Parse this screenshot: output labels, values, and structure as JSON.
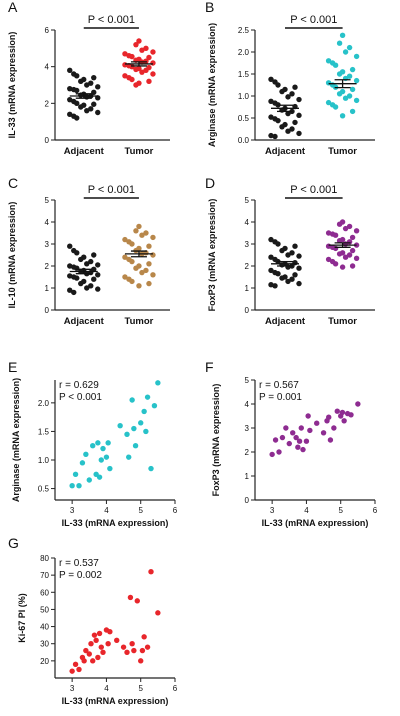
{
  "colors": {
    "black": "#1a1a1a",
    "red": "#e8262b",
    "cyan": "#27c2c9",
    "gold": "#b8874a",
    "purple": "#8e2c91"
  },
  "chart_data": [
    {
      "panel": "A",
      "type": "scatter",
      "ylabel": "IL-33 (mRNA expression)",
      "ylim": [
        0,
        6
      ],
      "yticks": [
        "0",
        "2",
        "4",
        "6"
      ],
      "categories": [
        "Adjacent",
        "Tumor"
      ],
      "annotation": "P < 0.001",
      "series": [
        {
          "color": "black",
          "mean": 2.4,
          "sem": 0.12,
          "values": [
            3.8,
            3.6,
            3.5,
            3.4,
            3.3,
            3.2,
            3.1,
            3.0,
            2.9,
            2.8,
            2.75,
            2.7,
            2.6,
            2.5,
            2.45,
            2.4,
            2.35,
            2.3,
            2.2,
            2.1,
            2.0,
            1.95,
            1.9,
            1.8,
            1.7,
            1.6,
            1.5,
            1.4,
            1.3,
            1.2
          ]
        },
        {
          "color": "red",
          "mean": 4.15,
          "sem": 0.11,
          "values": [
            5.4,
            5.2,
            5.0,
            4.9,
            4.8,
            4.7,
            4.6,
            4.55,
            4.5,
            4.4,
            4.35,
            4.3,
            4.25,
            4.2,
            4.1,
            4.05,
            4.0,
            3.95,
            3.9,
            3.85,
            3.8,
            3.7,
            3.6,
            3.5,
            3.4,
            3.3,
            3.2,
            3.1,
            3.0
          ]
        }
      ]
    },
    {
      "panel": "B",
      "type": "scatter",
      "ylabel": "Arginase (mRNA expression)",
      "ylim": [
        0,
        2.5
      ],
      "yticks": [
        "0.0",
        "0.5",
        "1.0",
        "1.5",
        "2.0",
        "2.5"
      ],
      "categories": [
        "Adjacent",
        "Tumor"
      ],
      "annotation": "P < 0.001",
      "series": [
        {
          "color": "black",
          "mean": 0.72,
          "sem": 0.07,
          "values": [
            1.38,
            1.32,
            1.25,
            1.2,
            1.15,
            1.1,
            1.05,
            0.98,
            0.92,
            0.88,
            0.84,
            0.8,
            0.76,
            0.72,
            0.68,
            0.65,
            0.6,
            0.56,
            0.52,
            0.48,
            0.44,
            0.4,
            0.35,
            0.3,
            0.25,
            0.2,
            0.15,
            0.1,
            0.08
          ]
        },
        {
          "color": "cyan",
          "mean": 1.28,
          "sem": 0.09,
          "values": [
            2.38,
            2.2,
            2.1,
            2.0,
            1.9,
            1.8,
            1.75,
            1.7,
            1.6,
            1.55,
            1.5,
            1.45,
            1.4,
            1.35,
            1.3,
            1.25,
            1.2,
            1.15,
            1.1,
            1.05,
            1.0,
            0.95,
            0.9,
            0.85,
            0.8,
            0.75,
            0.65,
            0.55
          ]
        }
      ]
    },
    {
      "panel": "C",
      "type": "scatter",
      "ylabel": "IL-10 (mRNA expression)",
      "ylim": [
        0,
        5
      ],
      "yticks": [
        "0",
        "1",
        "2",
        "3",
        "4",
        "5"
      ],
      "categories": [
        "Adjacent",
        "Tumor"
      ],
      "annotation": "P < 0.001",
      "series": [
        {
          "color": "black",
          "mean": 1.75,
          "sem": 0.1,
          "values": [
            2.9,
            2.7,
            2.6,
            2.5,
            2.4,
            2.3,
            2.2,
            2.1,
            2.05,
            2.0,
            1.95,
            1.9,
            1.85,
            1.8,
            1.75,
            1.7,
            1.65,
            1.6,
            1.55,
            1.5,
            1.45,
            1.4,
            1.3,
            1.2,
            1.1,
            1.0,
            0.95,
            0.9,
            0.8
          ]
        },
        {
          "color": "gold",
          "mean": 2.55,
          "sem": 0.13,
          "values": [
            3.8,
            3.6,
            3.5,
            3.4,
            3.3,
            3.2,
            3.1,
            3.0,
            2.9,
            2.8,
            2.7,
            2.6,
            2.55,
            2.5,
            2.4,
            2.3,
            2.2,
            2.1,
            2.0,
            1.9,
            1.8,
            1.7,
            1.6,
            1.5,
            1.4,
            1.3,
            1.2,
            1.1
          ]
        }
      ]
    },
    {
      "panel": "D",
      "type": "scatter",
      "ylabel": "FoxP3 (mRNA expression)",
      "ylim": [
        0,
        5
      ],
      "yticks": [
        "0",
        "1",
        "2",
        "3",
        "4",
        "5"
      ],
      "categories": [
        "Adjacent",
        "Tumor"
      ],
      "annotation": "P < 0.001",
      "series": [
        {
          "color": "black",
          "mean": 2.1,
          "sem": 0.1,
          "values": [
            3.2,
            3.1,
            3.0,
            2.9,
            2.8,
            2.7,
            2.6,
            2.5,
            2.45,
            2.4,
            2.3,
            2.2,
            2.15,
            2.1,
            2.05,
            2.0,
            1.95,
            1.9,
            1.8,
            1.7,
            1.65,
            1.6,
            1.5,
            1.45,
            1.4,
            1.3,
            1.2,
            1.15,
            1.1
          ]
        },
        {
          "color": "purple",
          "mean": 2.95,
          "sem": 0.1,
          "values": [
            4.0,
            3.9,
            3.8,
            3.7,
            3.6,
            3.5,
            3.45,
            3.4,
            3.3,
            3.2,
            3.15,
            3.1,
            3.0,
            2.95,
            2.9,
            2.85,
            2.8,
            2.7,
            2.6,
            2.55,
            2.5,
            2.4,
            2.35,
            2.3,
            2.2,
            2.1,
            2.0,
            1.95
          ]
        }
      ]
    },
    {
      "panel": "E",
      "type": "scatter",
      "xlabel": "IL-33 (mRNA expression)",
      "ylabel": "Arginase (mRNA expression)",
      "xlim": [
        2.5,
        6
      ],
      "ylim": [
        0.3,
        2.4
      ],
      "xticks": [
        "3",
        "4",
        "5",
        "6"
      ],
      "yticks": [
        "0.5",
        "1.0",
        "1.5",
        "2.0"
      ],
      "annotations": [
        "r = 0.629",
        "P < 0.001"
      ],
      "color": "cyan",
      "points": [
        [
          3.0,
          0.55
        ],
        [
          3.1,
          0.75
        ],
        [
          3.2,
          0.55
        ],
        [
          3.3,
          0.95
        ],
        [
          3.4,
          1.1
        ],
        [
          3.5,
          0.65
        ],
        [
          3.6,
          1.25
        ],
        [
          3.7,
          0.75
        ],
        [
          3.75,
          1.3
        ],
        [
          3.8,
          0.7
        ],
        [
          3.85,
          1.0
        ],
        [
          3.9,
          1.2
        ],
        [
          4.0,
          1.05
        ],
        [
          4.05,
          1.3
        ],
        [
          4.1,
          0.85
        ],
        [
          4.4,
          1.6
        ],
        [
          4.6,
          1.45
        ],
        [
          4.65,
          1.05
        ],
        [
          4.75,
          2.05
        ],
        [
          4.8,
          1.55
        ],
        [
          4.85,
          1.25
        ],
        [
          5.0,
          1.65
        ],
        [
          5.1,
          1.85
        ],
        [
          5.15,
          1.5
        ],
        [
          5.2,
          2.1
        ],
        [
          5.3,
          0.85
        ],
        [
          5.4,
          1.95
        ],
        [
          5.5,
          2.35
        ]
      ]
    },
    {
      "panel": "F",
      "type": "scatter",
      "xlabel": "IL-33 (mRNA expression)",
      "ylabel": "FoxP3 (mRNA expression)",
      "xlim": [
        2.5,
        6
      ],
      "ylim": [
        0,
        5
      ],
      "xticks": [
        "3",
        "4",
        "5",
        "6"
      ],
      "yticks": [
        "0",
        "1",
        "2",
        "3",
        "4",
        "5"
      ],
      "annotations": [
        "r = 0.567",
        "P = 0.001"
      ],
      "color": "purple",
      "points": [
        [
          3.0,
          1.9
        ],
        [
          3.1,
          2.5
        ],
        [
          3.2,
          2.0
        ],
        [
          3.3,
          2.6
        ],
        [
          3.4,
          3.0
        ],
        [
          3.5,
          2.35
        ],
        [
          3.6,
          2.8
        ],
        [
          3.7,
          2.6
        ],
        [
          3.75,
          2.2
        ],
        [
          3.8,
          2.45
        ],
        [
          3.85,
          3.0
        ],
        [
          3.9,
          2.1
        ],
        [
          4.0,
          2.45
        ],
        [
          4.05,
          3.5
        ],
        [
          4.1,
          2.9
        ],
        [
          4.3,
          3.2
        ],
        [
          4.5,
          2.8
        ],
        [
          4.6,
          3.3
        ],
        [
          4.65,
          3.45
        ],
        [
          4.7,
          2.5
        ],
        [
          4.8,
          3.0
        ],
        [
          4.9,
          3.7
        ],
        [
          5.0,
          3.5
        ],
        [
          5.05,
          3.65
        ],
        [
          5.1,
          3.3
        ],
        [
          5.2,
          3.6
        ],
        [
          5.3,
          3.55
        ],
        [
          5.5,
          4.0
        ]
      ]
    },
    {
      "panel": "G",
      "type": "scatter",
      "xlabel": "IL-33 (mRNA expression)",
      "ylabel": "Ki-67 PI (%)",
      "xlim": [
        2.5,
        6
      ],
      "ylim": [
        10,
        80
      ],
      "xticks": [
        "3",
        "4",
        "5",
        "6"
      ],
      "yticks": [
        "20",
        "30",
        "40",
        "50",
        "60",
        "70",
        "80"
      ],
      "annotations": [
        "r = 0.537",
        "P = 0.002"
      ],
      "color": "red",
      "points": [
        [
          3.0,
          14
        ],
        [
          3.1,
          18
        ],
        [
          3.2,
          15
        ],
        [
          3.3,
          22
        ],
        [
          3.35,
          20
        ],
        [
          3.4,
          26
        ],
        [
          3.5,
          24
        ],
        [
          3.55,
          30
        ],
        [
          3.6,
          20
        ],
        [
          3.65,
          35
        ],
        [
          3.7,
          32
        ],
        [
          3.75,
          22
        ],
        [
          3.8,
          36
        ],
        [
          3.85,
          28
        ],
        [
          3.9,
          25
        ],
        [
          4.0,
          38
        ],
        [
          4.05,
          30
        ],
        [
          4.1,
          37
        ],
        [
          4.3,
          32
        ],
        [
          4.5,
          28
        ],
        [
          4.6,
          25
        ],
        [
          4.7,
          57
        ],
        [
          4.75,
          30
        ],
        [
          4.8,
          26
        ],
        [
          4.9,
          55
        ],
        [
          5.0,
          20
        ],
        [
          5.05,
          26
        ],
        [
          5.1,
          34
        ],
        [
          5.2,
          28
        ],
        [
          5.3,
          72
        ],
        [
          5.5,
          48
        ]
      ]
    }
  ]
}
